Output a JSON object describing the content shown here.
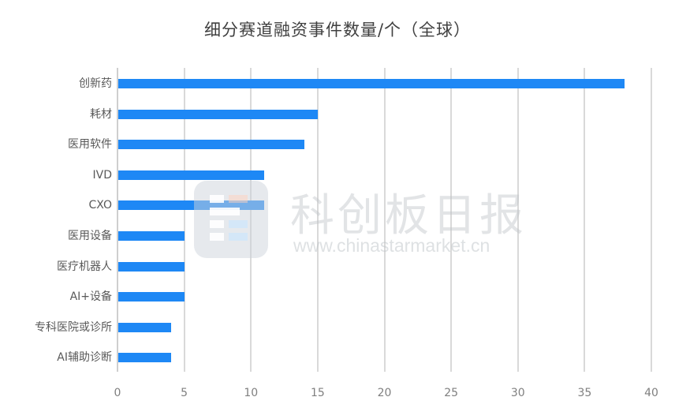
{
  "title": "细分赛道融资事件数量/个（全球）",
  "watermark": {
    "brand": "科创板日报",
    "url": "www.chinastarmarket.cn"
  },
  "colors": {
    "bar": "#1E88F5",
    "grid": "#d9d9d9"
  },
  "chart_data": {
    "type": "bar",
    "orientation": "horizontal",
    "title": "细分赛道融资事件数量/个（全球）",
    "xlabel": "",
    "ylabel": "",
    "categories": [
      "创新药",
      "耗材",
      "医用软件",
      "IVD",
      "CXO",
      "医用设备",
      "医疗机器人",
      "AI+设备",
      "专科医院或诊所",
      "AI辅助诊断"
    ],
    "values": [
      38,
      15,
      14,
      11,
      11,
      5,
      5,
      5,
      4,
      4
    ],
    "xlim": [
      0,
      40
    ],
    "xticks": [
      "0",
      "5",
      "10",
      "15",
      "20",
      "25",
      "30",
      "35",
      "40"
    ],
    "grid": true,
    "legend": null
  }
}
